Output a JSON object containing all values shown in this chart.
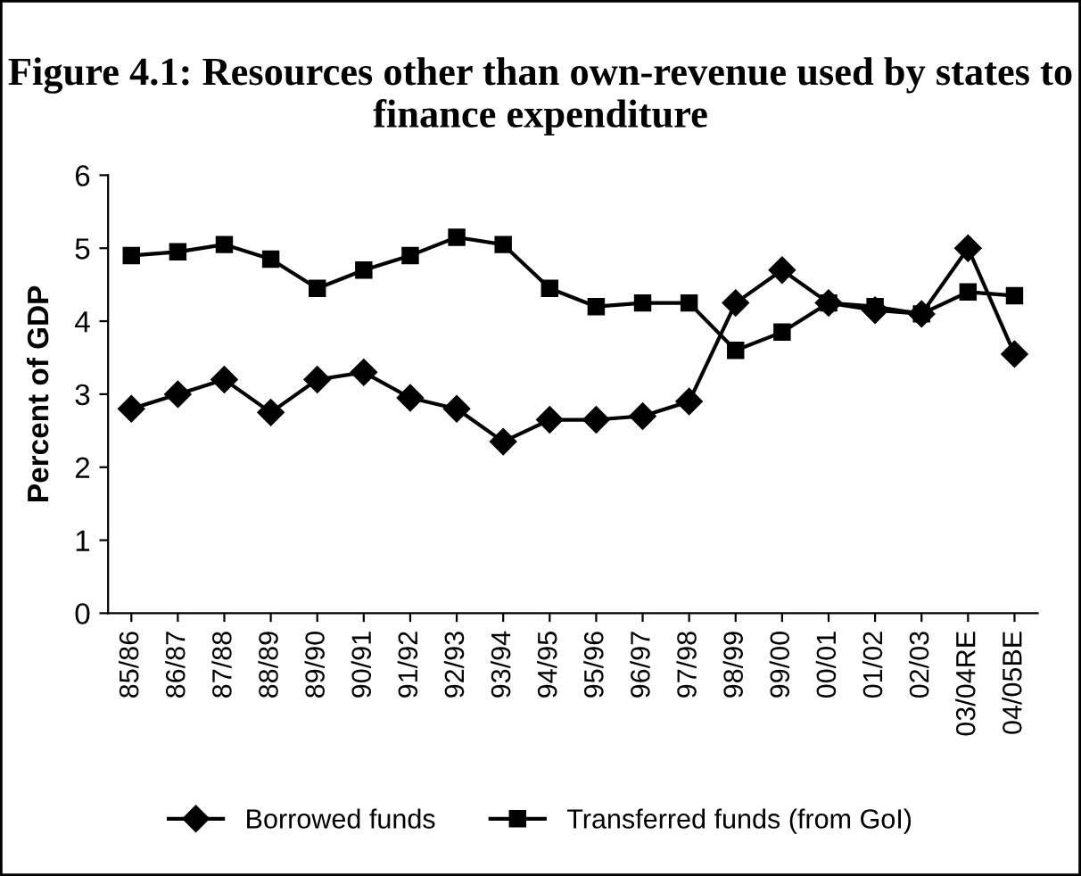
{
  "chart_data": {
    "type": "line",
    "title": "Figure 4.1: Resources other than own-revenue used by states to finance expenditure",
    "ylabel": "Percent of GDP",
    "categories": [
      "85/86",
      "86/87",
      "87/88",
      "88/89",
      "89/90",
      "90/91",
      "91/92",
      "92/93",
      "93/94",
      "94/95",
      "95/96",
      "96/97",
      "97/98",
      "98/99",
      "99/00",
      "00/01",
      "01/02",
      "02/03",
      "03/04RE",
      "04/05BE"
    ],
    "series": [
      {
        "name": "Borrowed funds",
        "color": "#000000",
        "marker": "diamond",
        "values": [
          2.8,
          3.0,
          3.2,
          2.75,
          3.2,
          3.3,
          2.95,
          2.8,
          2.35,
          2.65,
          2.65,
          2.7,
          2.9,
          4.25,
          4.7,
          4.25,
          4.15,
          4.1,
          5.0,
          3.55
        ]
      },
      {
        "name": "Transferred funds (from GoI)",
        "color": "#000000",
        "marker": "square",
        "values": [
          4.9,
          4.95,
          5.05,
          4.85,
          4.45,
          4.7,
          4.9,
          5.15,
          5.05,
          4.45,
          4.2,
          4.25,
          4.25,
          3.6,
          3.85,
          4.25,
          4.2,
          4.1,
          4.4,
          4.35
        ]
      }
    ],
    "ylim": [
      0,
      6
    ],
    "yticks": [
      0,
      1,
      2,
      3,
      4,
      5,
      6
    ],
    "grid": false,
    "legend": "bottom"
  }
}
